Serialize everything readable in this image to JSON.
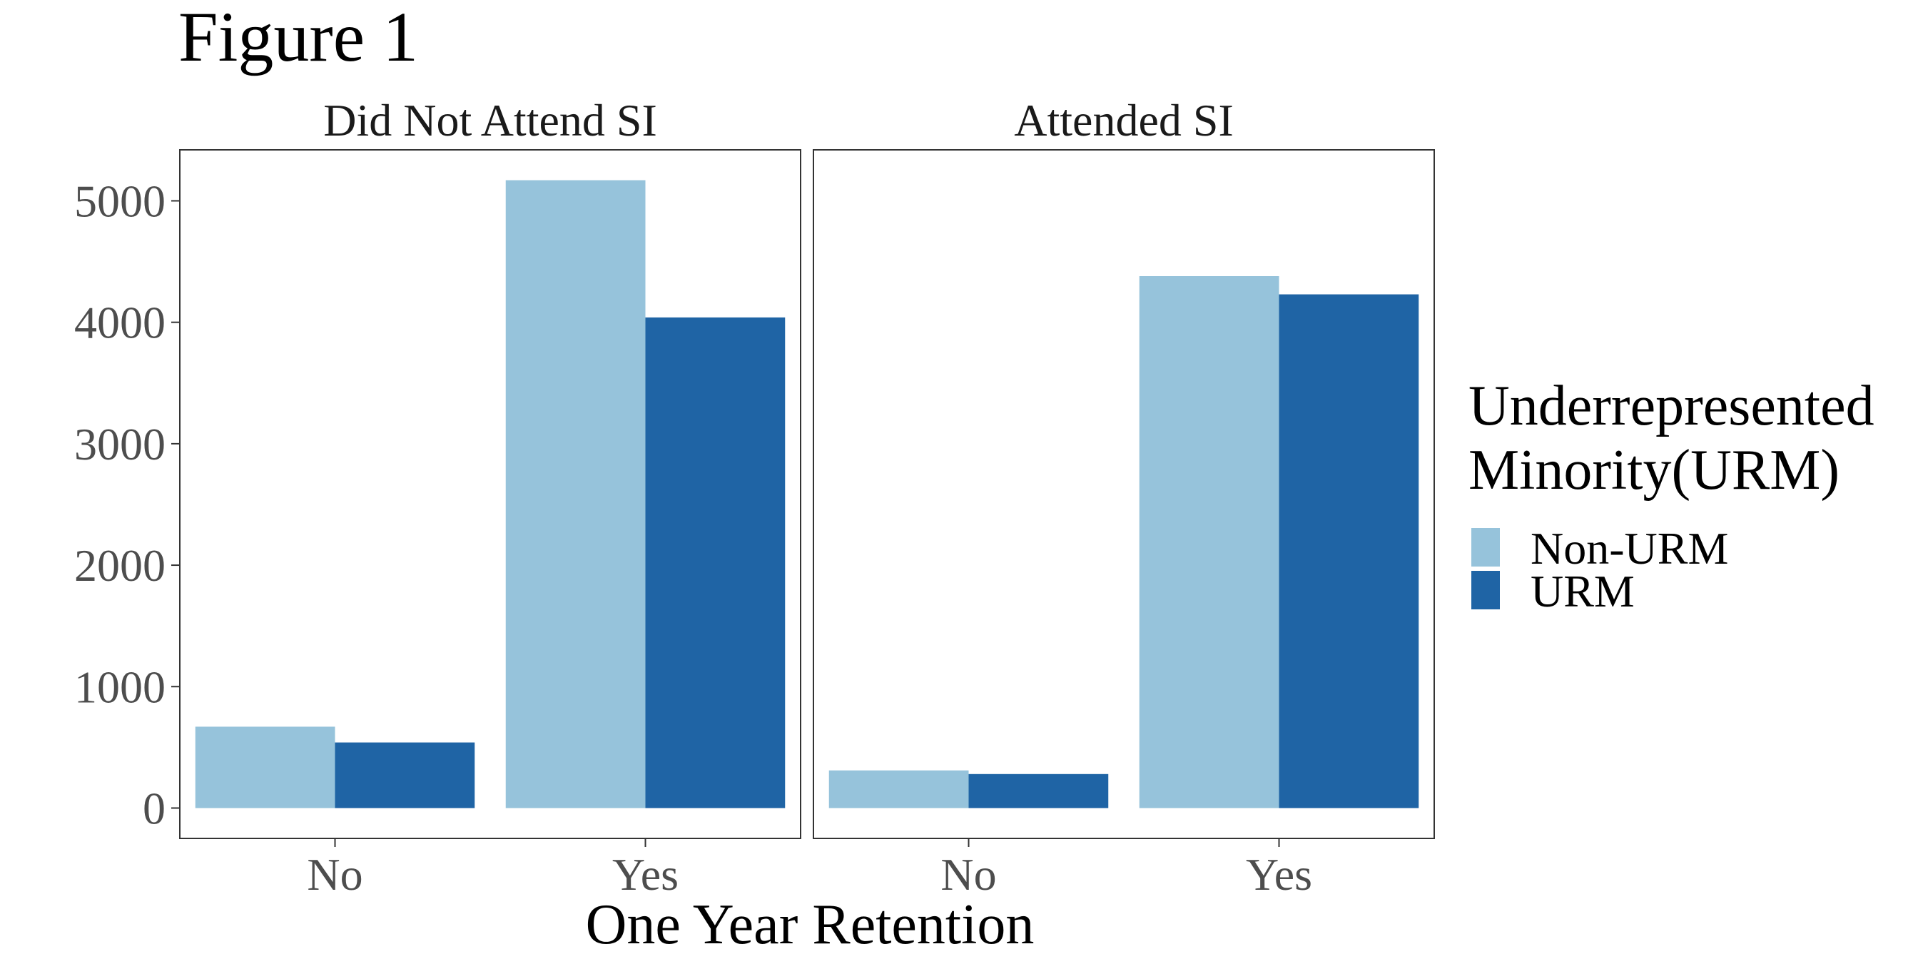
{
  "chart_data": {
    "type": "bar",
    "title": "Figure 1",
    "xlabel": "One Year Retention",
    "ylabel": "",
    "ylim": [
      -250,
      5420
    ],
    "yticks": [
      0,
      1000,
      2000,
      3000,
      4000,
      5000
    ],
    "categories": [
      "No",
      "Yes"
    ],
    "facets": [
      {
        "label": "Did Not Attend SI",
        "series": [
          {
            "name": "Non-URM",
            "values": [
              670,
              5170
            ]
          },
          {
            "name": "URM",
            "values": [
              540,
              4040
            ]
          }
        ]
      },
      {
        "label": "Attended SI",
        "series": [
          {
            "name": "Non-URM",
            "values": [
              310,
              4380
            ]
          },
          {
            "name": "URM",
            "values": [
              280,
              4230
            ]
          }
        ]
      }
    ],
    "legend": {
      "title_lines": [
        "Underrepresented",
        "Minority(URM)"
      ],
      "position": "right",
      "entries": [
        {
          "label": "Non-URM",
          "color": "#96c3db"
        },
        {
          "label": "URM",
          "color": "#1f64a5"
        }
      ]
    },
    "grid": false
  }
}
